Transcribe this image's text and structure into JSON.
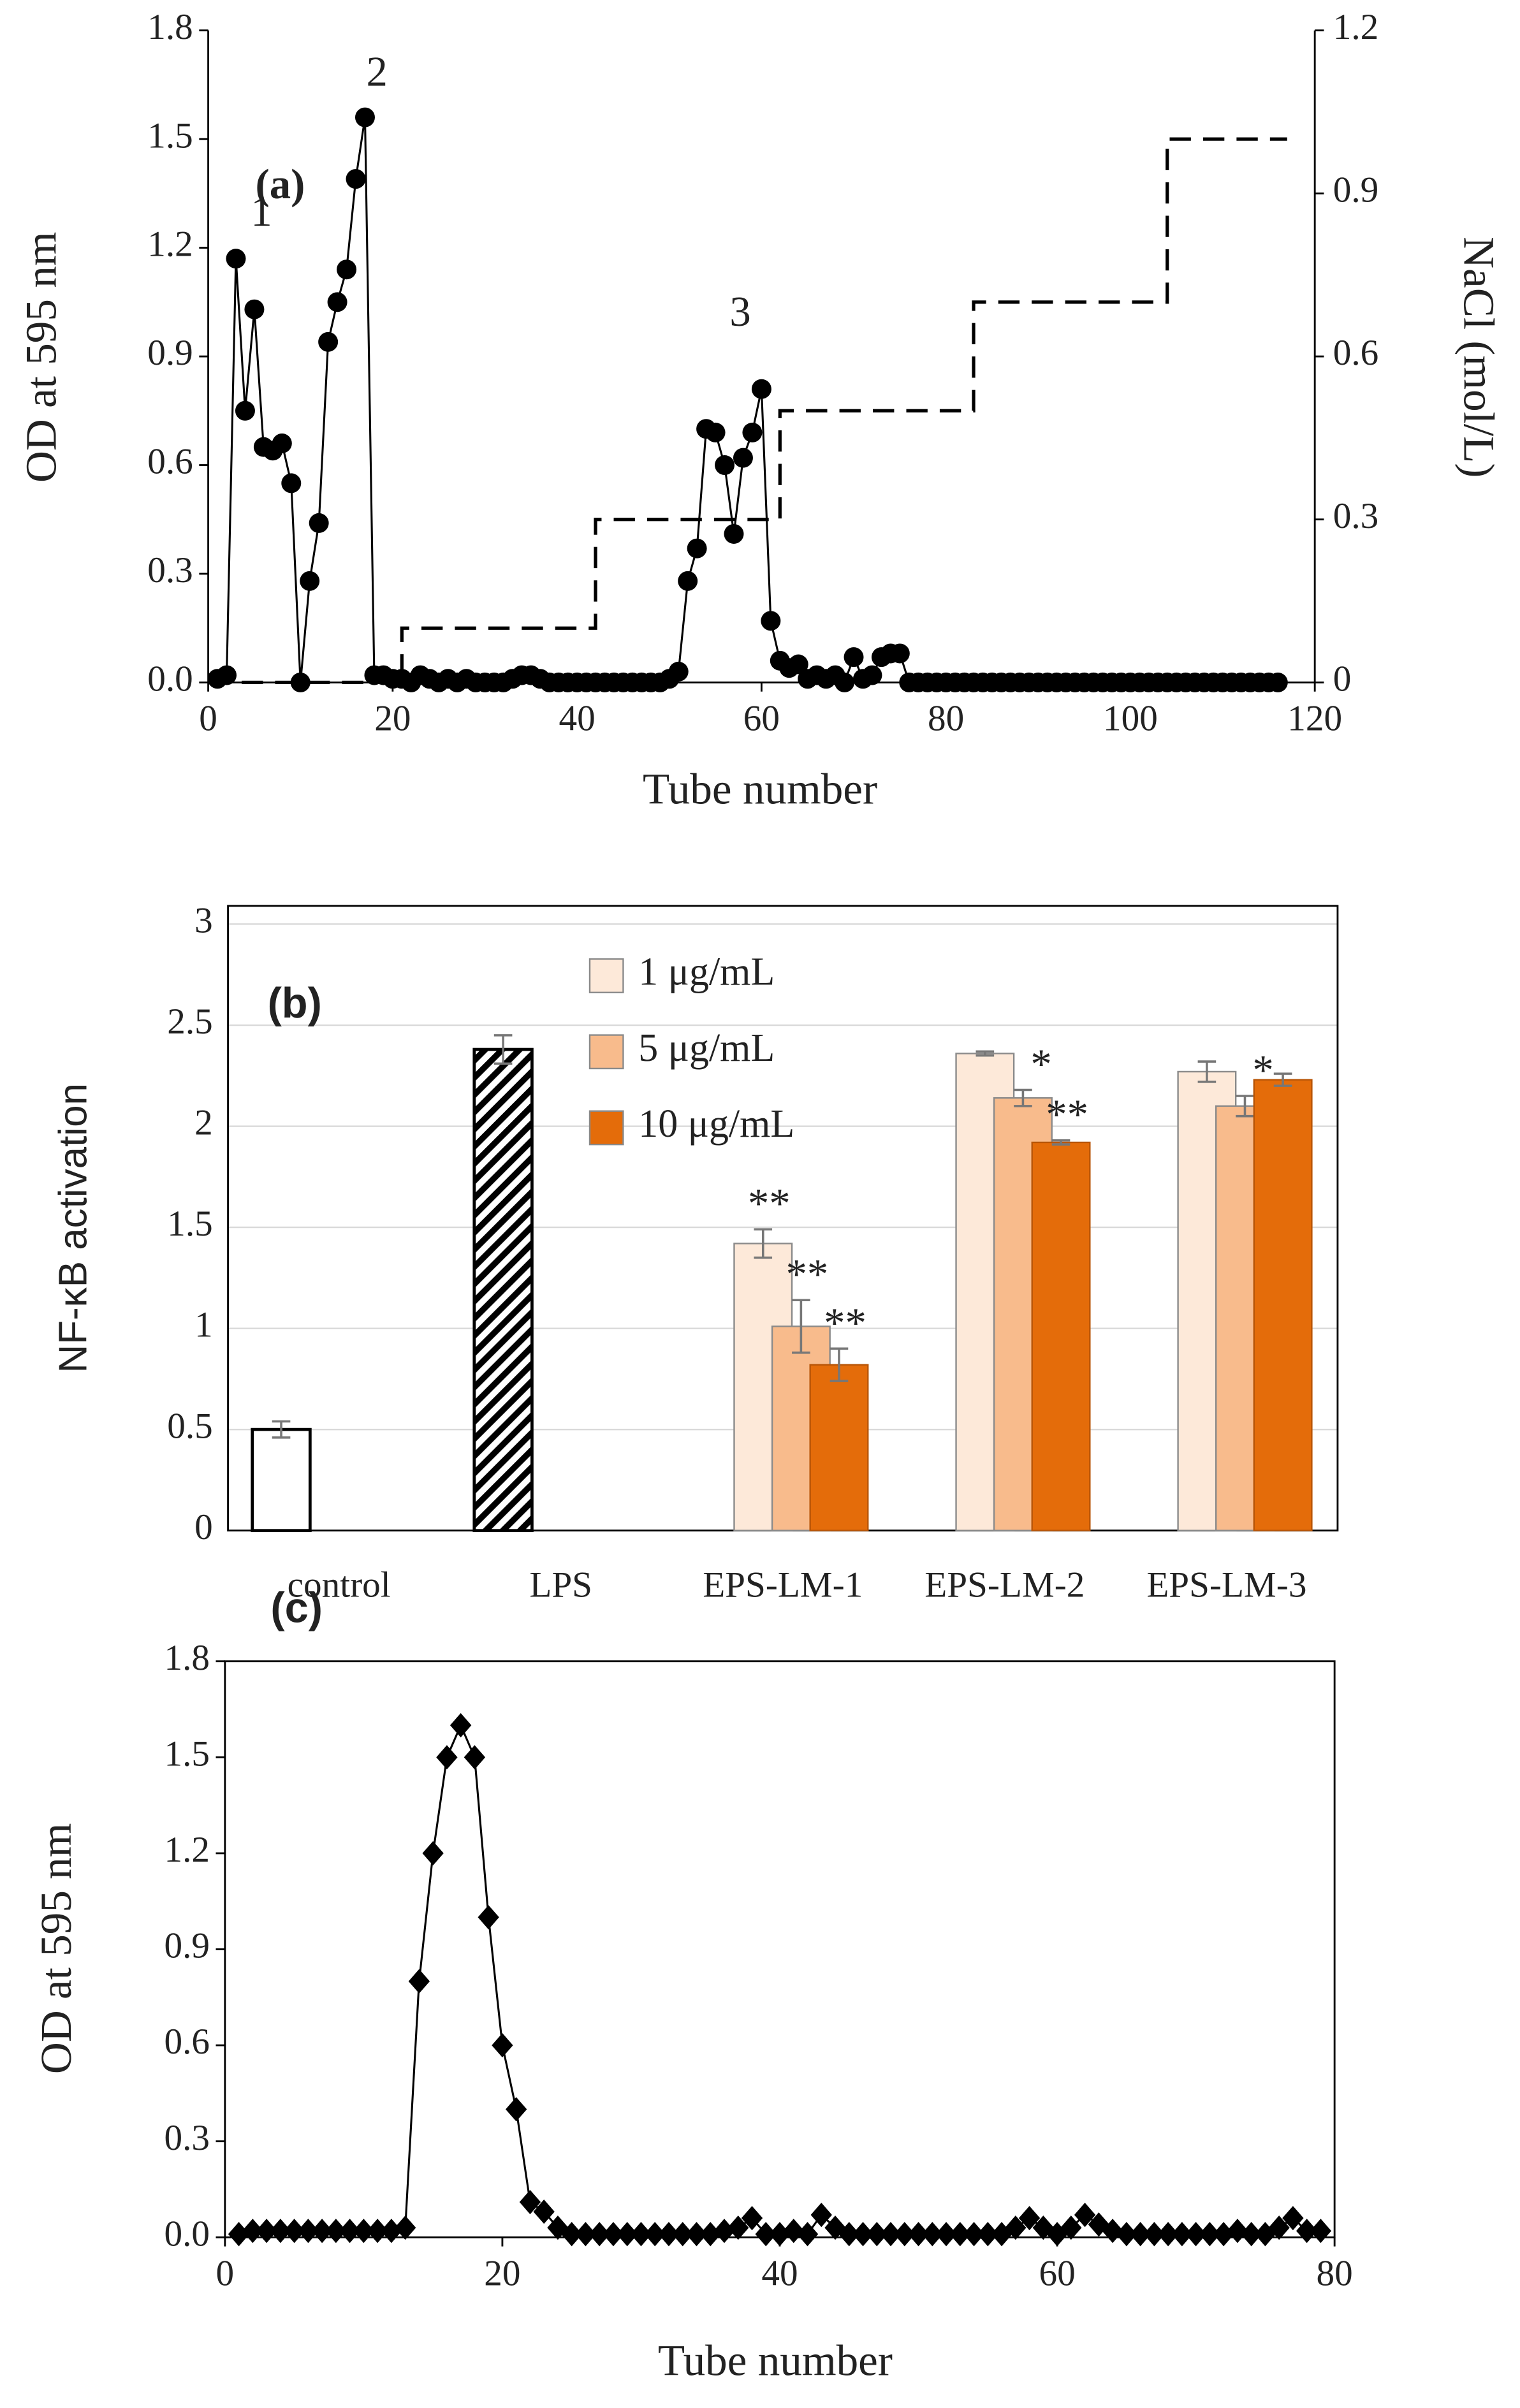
{
  "chart_data": [
    {
      "type": "line",
      "panel_label": "(a)",
      "xlabel": "Tube number",
      "ylabel": "OD at 595 nm",
      "y2label": "NaCl (mol/L)",
      "annotations": [
        "1",
        "2",
        "3"
      ],
      "xlim": [
        0,
        120
      ],
      "xticks": [
        0,
        20,
        40,
        60,
        80,
        100,
        120
      ],
      "ylim": [
        0,
        1.8
      ],
      "yticks": [
        {
          "value": 0,
          "label": "0.0"
        },
        0.3,
        0.6,
        0.9,
        1.2,
        1.5,
        1.8
      ],
      "y2lim": [
        0,
        1.2
      ],
      "y2ticks": [
        0,
        0.3,
        0.6,
        0.9,
        1.2
      ],
      "x": [
        1,
        2,
        3,
        4,
        5,
        6,
        7,
        8,
        9,
        10,
        11,
        12,
        13,
        14,
        15,
        16,
        17,
        18,
        19,
        20,
        21,
        22,
        23,
        24,
        25,
        26,
        27,
        28,
        29,
        30,
        31,
        32,
        33,
        34,
        35,
        36,
        37,
        38,
        39,
        40,
        41,
        42,
        43,
        44,
        45,
        46,
        47,
        48,
        49,
        50,
        51,
        52,
        53,
        54,
        55,
        56,
        57,
        58,
        59,
        60,
        61,
        62,
        63,
        64,
        65,
        66,
        67,
        68,
        69,
        70,
        71,
        72,
        73,
        74,
        75,
        76,
        77,
        78,
        79,
        80,
        81,
        82,
        83,
        84,
        85,
        86,
        87,
        88,
        89,
        90,
        91,
        92,
        93,
        94,
        95,
        96,
        97,
        98,
        99,
        100,
        101,
        102,
        103,
        104,
        105,
        106,
        107,
        108,
        109,
        110,
        111,
        112,
        113,
        114,
        115,
        116
      ],
      "series": [
        {
          "color": "#000000",
          "marker": "circle",
          "values": [
            0.01,
            0.02,
            1.17,
            0.75,
            1.03,
            0.65,
            0.64,
            0.66,
            0.55,
            0,
            0.28,
            0.44,
            0.94,
            1.05,
            1.14,
            1.39,
            1.56,
            0.02,
            0.02,
            0.01,
            0.01,
            0,
            0.02,
            0.01,
            0,
            0.01,
            0,
            0.01,
            0,
            0,
            0,
            0,
            0.01,
            0.02,
            0.02,
            0.01,
            0,
            0,
            0,
            0,
            0,
            0,
            0,
            0,
            0,
            0,
            0,
            0,
            0,
            0.01,
            0.03,
            0.28,
            0.37,
            0.7,
            0.69,
            0.6,
            0.41,
            0.62,
            0.69,
            0.81,
            0.17,
            0.06,
            0.04,
            0.05,
            0.01,
            0.02,
            0.01,
            0.02,
            0,
            0.07,
            0.01,
            0.02,
            0.07,
            0.08,
            0.08,
            0,
            0,
            0,
            0,
            0,
            0,
            0,
            0,
            0,
            0,
            0,
            0,
            0,
            0,
            0,
            0,
            0,
            0,
            0,
            0,
            0,
            0,
            0,
            0,
            0,
            0,
            0,
            0,
            0,
            0,
            0,
            0,
            0,
            0,
            0,
            0,
            0,
            0,
            0,
            0,
            0
          ]
        },
        {
          "color": "#000000",
          "axis": "y2",
          "dash": true,
          "x": [
            0,
            21,
            21,
            42,
            42,
            62,
            62,
            83,
            83,
            104,
            104,
            117
          ],
          "values": [
            0,
            0,
            0.1,
            0.1,
            0.3,
            0.3,
            0.5,
            0.5,
            0.7,
            0.7,
            1.0,
            1.0
          ]
        }
      ]
    },
    {
      "type": "bar",
      "panel_label": "(b)",
      "ylabel": "NF-κB activation",
      "categories": [
        "control",
        "LPS",
        "EPS-LM-1",
        "EPS-LM-2",
        "EPS-LM-3"
      ],
      "ylim": [
        0,
        3
      ],
      "yticks": [
        0,
        0.5,
        1,
        1.5,
        2,
        2.5,
        3
      ],
      "grid": true,
      "legend": "top",
      "series": [
        {
          "color": "#ffffff",
          "pattern": [
            null,
            "hatch",
            null,
            null,
            null
          ],
          "values": [
            0.5,
            2.38,
            null,
            null,
            null
          ],
          "errors": [
            0.04,
            0.07,
            null,
            null,
            null
          ]
        },
        {
          "name": "1 μg/mL",
          "color": "#fde9d9",
          "values": [
            null,
            null,
            1.42,
            2.36,
            2.27
          ],
          "errors": [
            null,
            null,
            0.07,
            0.01,
            0.05
          ],
          "significance": [
            null,
            null,
            "**",
            null,
            null
          ]
        },
        {
          "name": "5 μg/mL",
          "color": "#f8bb8c",
          "values": [
            null,
            null,
            1.01,
            2.14,
            2.1
          ],
          "errors": [
            null,
            null,
            0.13,
            0.04,
            0.05
          ],
          "significance": [
            null,
            null,
            "**",
            "*",
            "*"
          ]
        },
        {
          "name": "10 μg/mL",
          "color": "#e46c0a",
          "values": [
            null,
            null,
            0.82,
            1.92,
            2.23
          ],
          "errors": [
            null,
            null,
            0.08,
            0.01,
            0.03
          ],
          "significance": [
            null,
            null,
            "**",
            "**",
            null
          ]
        }
      ]
    },
    {
      "type": "line",
      "panel_label": "(c)",
      "xlabel": "Tube number",
      "ylabel": "OD at 595 nm",
      "xlim": [
        0,
        80
      ],
      "xticks": [
        0,
        20,
        40,
        60,
        80
      ],
      "ylim": [
        0,
        1.8
      ],
      "yticks": [
        {
          "value": 0,
          "label": "0.0"
        },
        0.3,
        0.6,
        0.9,
        1.2,
        1.5,
        1.8
      ],
      "x": [
        1,
        2,
        3,
        4,
        5,
        6,
        7,
        8,
        9,
        10,
        11,
        12,
        13,
        14,
        15,
        16,
        17,
        18,
        19,
        20,
        21,
        22,
        23,
        24,
        25,
        26,
        27,
        28,
        29,
        30,
        31,
        32,
        33,
        34,
        35,
        36,
        37,
        38,
        39,
        40,
        41,
        42,
        43,
        44,
        45,
        46,
        47,
        48,
        49,
        50,
        51,
        52,
        53,
        54,
        55,
        56,
        57,
        58,
        59,
        60,
        61,
        62,
        63,
        64,
        65,
        66,
        67,
        68,
        69,
        70,
        71,
        72,
        73,
        74,
        75,
        76,
        77,
        78,
        79
      ],
      "series": [
        {
          "color": "#000000",
          "marker": "diamond",
          "values": [
            0.01,
            0.02,
            0.02,
            0.02,
            0.02,
            0.02,
            0.02,
            0.02,
            0.02,
            0.02,
            0.02,
            0.02,
            0.03,
            0.8,
            1.2,
            1.5,
            1.6,
            1.5,
            1.0,
            0.6,
            0.4,
            0.11,
            0.08,
            0.03,
            0.01,
            0.01,
            0.01,
            0.01,
            0.01,
            0.01,
            0.01,
            0.01,
            0.01,
            0.01,
            0.01,
            0.02,
            0.03,
            0.06,
            0.01,
            0.01,
            0.02,
            0.01,
            0.07,
            0.03,
            0.01,
            0.01,
            0.01,
            0.01,
            0.01,
            0.01,
            0.01,
            0.01,
            0.01,
            0.01,
            0.01,
            0.01,
            0.03,
            0.06,
            0.03,
            0.01,
            0.03,
            0.07,
            0.04,
            0.02,
            0.01,
            0.01,
            0.01,
            0.01,
            0.01,
            0.01,
            0.01,
            0.01,
            0.02,
            0.01,
            0.01,
            0.03,
            0.06,
            0.02,
            0.02
          ]
        }
      ]
    }
  ]
}
